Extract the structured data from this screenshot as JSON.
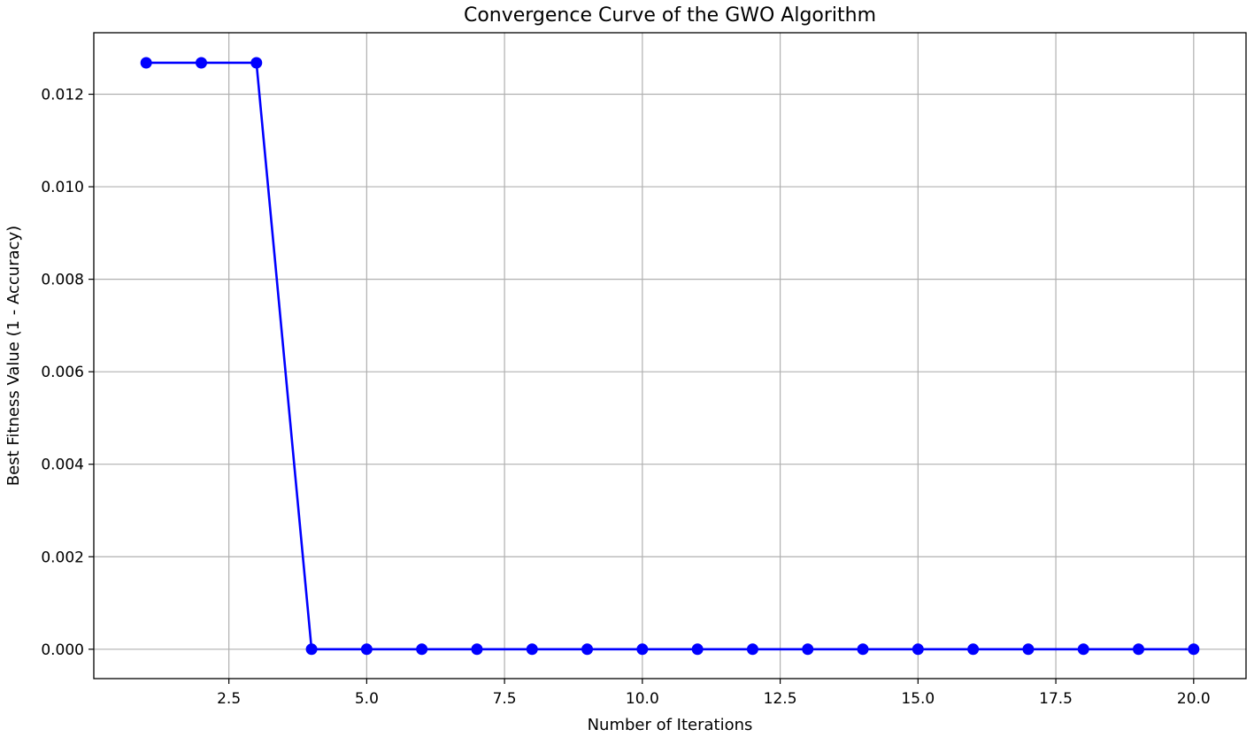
{
  "chart_data": {
    "type": "line",
    "title": "Convergence Curve of the GWO Algorithm",
    "xlabel": "Number of Iterations",
    "ylabel": "Best Fitness Value (1 - Accuracy)",
    "xlim": [
      0.05,
      20.95
    ],
    "ylim": [
      -0.000635,
      0.01333
    ],
    "xticks": [
      2.5,
      5.0,
      7.5,
      10.0,
      12.5,
      15.0,
      17.5,
      20.0
    ],
    "xtick_labels": [
      "2.5",
      "5.0",
      "7.5",
      "10.0",
      "12.5",
      "15.0",
      "17.5",
      "20.0"
    ],
    "yticks": [
      0.0,
      0.002,
      0.004,
      0.006,
      0.008,
      0.01,
      0.012
    ],
    "ytick_labels": [
      "0.000",
      "0.002",
      "0.004",
      "0.006",
      "0.008",
      "0.010",
      "0.012"
    ],
    "grid": true,
    "series": [
      {
        "color": "#0000ff",
        "marker": "circle",
        "x": [
          1,
          2,
          3,
          4,
          5,
          6,
          7,
          8,
          9,
          10,
          11,
          12,
          13,
          14,
          15,
          16,
          17,
          18,
          19,
          20
        ],
        "y": [
          0.01268,
          0.01268,
          0.01268,
          0,
          0,
          0,
          0,
          0,
          0,
          0,
          0,
          0,
          0,
          0,
          0,
          0,
          0,
          0,
          0,
          0
        ]
      }
    ]
  }
}
